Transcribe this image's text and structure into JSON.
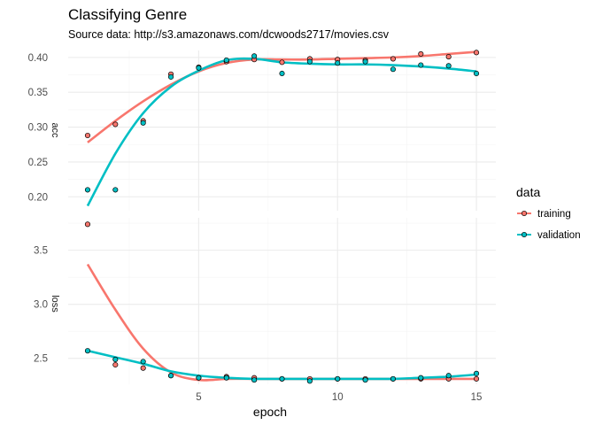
{
  "chart_data": {
    "type": "scatter",
    "title": "Classifying Genre",
    "subtitle": "Source data: http://s3.amazonaws.com/dcwoods2717/movies.csv",
    "xlabel": "epoch",
    "x_ticks": [
      "5",
      "10",
      "15"
    ],
    "x": [
      1,
      2,
      3,
      4,
      5,
      6,
      7,
      8,
      9,
      10,
      11,
      12,
      13,
      14,
      15
    ],
    "legend_title": "data",
    "legend_position": "right",
    "grid": true,
    "facets": [
      {
        "strip_label": "acc",
        "ylim": [
          0.18,
          0.41
        ],
        "y_ticks": [
          "0.20",
          "0.25",
          "0.30",
          "0.35",
          "0.40"
        ],
        "series": [
          {
            "name": "training",
            "color": "#F8766D",
            "points": [
              0.288,
              0.304,
              0.309,
              0.376,
              0.386,
              0.394,
              0.397,
              0.393,
              0.398,
              0.397,
              0.396,
              0.398,
              0.405,
              0.401,
              0.407
            ],
            "smooth": [
              0.278,
              0.309,
              0.337,
              0.361,
              0.38,
              0.392,
              0.397,
              0.397,
              0.397,
              0.398,
              0.399,
              0.4,
              0.402,
              0.405,
              0.408
            ]
          },
          {
            "name": "validation",
            "color": "#00BFC4",
            "points": [
              0.21,
              0.21,
              0.306,
              0.372,
              0.385,
              0.396,
              0.402,
              0.377,
              0.394,
              0.392,
              0.394,
              0.383,
              0.389,
              0.388,
              0.377
            ],
            "smooth": [
              0.187,
              0.262,
              0.32,
              0.358,
              0.381,
              0.396,
              0.398,
              0.393,
              0.391,
              0.39,
              0.39,
              0.389,
              0.387,
              0.384,
              0.38
            ]
          }
        ]
      },
      {
        "strip_label": "loss",
        "ylim": [
          2.26,
          3.8
        ],
        "y_ticks": [
          "2.5",
          "3.0",
          "3.5"
        ],
        "series": [
          {
            "name": "training",
            "color": "#F8766D",
            "points": [
              3.74,
              2.44,
              2.41,
              2.34,
              2.32,
              2.33,
              2.32,
              2.31,
              2.31,
              2.31,
              2.31,
              2.31,
              2.31,
              2.31,
              2.31
            ],
            "smooth": [
              3.37,
              2.95,
              2.59,
              2.37,
              2.3,
              2.31,
              2.31,
              2.31,
              2.31,
              2.31,
              2.31,
              2.31,
              2.31,
              2.31,
              2.31
            ]
          },
          {
            "name": "validation",
            "color": "#00BFC4",
            "points": [
              2.57,
              2.49,
              2.47,
              2.34,
              2.32,
              2.32,
              2.3,
              2.31,
              2.29,
              2.31,
              2.3,
              2.31,
              2.32,
              2.34,
              2.36
            ],
            "smooth": [
              2.57,
              2.51,
              2.45,
              2.38,
              2.34,
              2.32,
              2.31,
              2.31,
              2.31,
              2.31,
              2.31,
              2.31,
              2.32,
              2.33,
              2.35
            ]
          }
        ]
      }
    ]
  }
}
